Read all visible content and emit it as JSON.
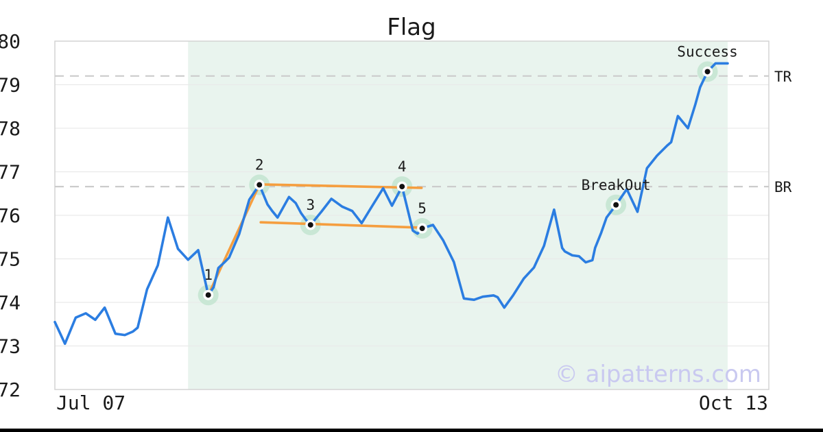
{
  "watermark": "© aipatterns.com",
  "colors": {
    "line_blue": "#2b7de1",
    "trend_orange": "#f59e3f",
    "marker_halo": "#c9e7d5",
    "marker_ring": "#ffffff",
    "marker_dot": "#111111",
    "shade": "#e9f4ee",
    "grid": "#e9e9e9",
    "border": "#d4d4d4",
    "dash": "#cccccc",
    "text": "#1a1a1a",
    "watermark": "#c9c9f0",
    "bottom_bar": "#000000"
  },
  "chart_data": {
    "type": "line",
    "title": "Flag",
    "xlabel": "",
    "ylabel": "",
    "grid": "horizontal",
    "x_axis": {
      "start_label": "Jul 07",
      "end_label": "Oct 13"
    },
    "y_axis": {
      "ticks": [
        80,
        79,
        78,
        77,
        76,
        75,
        74,
        73,
        72
      ],
      "range": [
        72,
        80
      ]
    },
    "shaded_region": {
      "from_d": 19.8,
      "to_d": 100
    },
    "levels": [
      {
        "label": "TR",
        "value": 79.2
      },
      {
        "label": "BR",
        "value": 76.66
      }
    ],
    "trend_lines": [
      {
        "name": "pole",
        "from": [
          22.8,
          74.17
        ],
        "to": [
          30.4,
          76.7
        ]
      },
      {
        "name": "upper-flag",
        "from": [
          30.4,
          76.71
        ],
        "to": [
          54.5,
          76.63
        ]
      },
      {
        "name": "lower-flag",
        "from": [
          30.6,
          75.84
        ],
        "to": [
          53.9,
          75.72
        ]
      }
    ],
    "markers": [
      {
        "label": "1",
        "d": 22.8,
        "p": 74.17
      },
      {
        "label": "2",
        "d": 30.4,
        "p": 76.7
      },
      {
        "label": "3",
        "d": 38.0,
        "p": 75.78
      },
      {
        "label": "4",
        "d": 51.6,
        "p": 76.66
      },
      {
        "label": "5",
        "d": 54.6,
        "p": 75.7
      },
      {
        "label": "BreakOut",
        "d": 83.4,
        "p": 76.24
      },
      {
        "label": "Success",
        "d": 97.0,
        "p": 79.3
      }
    ],
    "series": [
      {
        "name": "price",
        "color": "#2b7de1",
        "points": [
          [
            0,
            73.55
          ],
          [
            1.5,
            73.05
          ],
          [
            3.1,
            73.65
          ],
          [
            4.6,
            73.75
          ],
          [
            6,
            73.6
          ],
          [
            7.4,
            73.88
          ],
          [
            9,
            73.28
          ],
          [
            10.4,
            73.25
          ],
          [
            11.6,
            73.33
          ],
          [
            12.3,
            73.42
          ],
          [
            13.7,
            74.3
          ],
          [
            15.3,
            74.85
          ],
          [
            16.8,
            75.95
          ],
          [
            18.3,
            75.23
          ],
          [
            19.8,
            74.98
          ],
          [
            21.3,
            75.2
          ],
          [
            22.8,
            74.17
          ],
          [
            23.6,
            74.35
          ],
          [
            24.3,
            74.79
          ],
          [
            25.2,
            74.92
          ],
          [
            25.9,
            75.03
          ],
          [
            27.4,
            75.57
          ],
          [
            28.9,
            76.36
          ],
          [
            30.4,
            76.7
          ],
          [
            31.6,
            76.25
          ],
          [
            32.3,
            76.1
          ],
          [
            33.1,
            75.95
          ],
          [
            34.8,
            76.42
          ],
          [
            35.8,
            76.28
          ],
          [
            36.6,
            76.05
          ],
          [
            37.3,
            75.9
          ],
          [
            38,
            75.78
          ],
          [
            38.9,
            75.95
          ],
          [
            39.6,
            76.08
          ],
          [
            41.1,
            76.38
          ],
          [
            42.7,
            76.2
          ],
          [
            44.2,
            76.1
          ],
          [
            45.6,
            75.82
          ],
          [
            47.1,
            76.2
          ],
          [
            48.8,
            76.62
          ],
          [
            50.1,
            76.22
          ],
          [
            51.6,
            76.66
          ],
          [
            53.2,
            75.65
          ],
          [
            53.9,
            75.58
          ],
          [
            54.6,
            75.7
          ],
          [
            56.2,
            75.78
          ],
          [
            57.7,
            75.43
          ],
          [
            59.3,
            74.93
          ],
          [
            60.8,
            74.09
          ],
          [
            62.3,
            74.06
          ],
          [
            63.6,
            74.13
          ],
          [
            65.2,
            74.16
          ],
          [
            65.8,
            74.12
          ],
          [
            66.8,
            73.88
          ],
          [
            68.1,
            74.16
          ],
          [
            69.7,
            74.55
          ],
          [
            71.2,
            74.8
          ],
          [
            72.7,
            75.3
          ],
          [
            74.2,
            76.13
          ],
          [
            75.4,
            75.25
          ],
          [
            75.8,
            75.17
          ],
          [
            76.9,
            75.08
          ],
          [
            77.9,
            75.06
          ],
          [
            78.9,
            74.92
          ],
          [
            79.9,
            74.97
          ],
          [
            80.3,
            75.25
          ],
          [
            81.2,
            75.6
          ],
          [
            82,
            75.95
          ],
          [
            83.4,
            76.24
          ],
          [
            85,
            76.6
          ],
          [
            86.6,
            76.08
          ],
          [
            88,
            77.08
          ],
          [
            89.5,
            77.37
          ],
          [
            91,
            77.6
          ],
          [
            91.6,
            77.68
          ],
          [
            92.6,
            78.28
          ],
          [
            94.1,
            78
          ],
          [
            95.2,
            78.55
          ],
          [
            95.9,
            78.94
          ],
          [
            97,
            79.3
          ],
          [
            98.2,
            79.49
          ],
          [
            100,
            79.49
          ]
        ]
      }
    ]
  }
}
